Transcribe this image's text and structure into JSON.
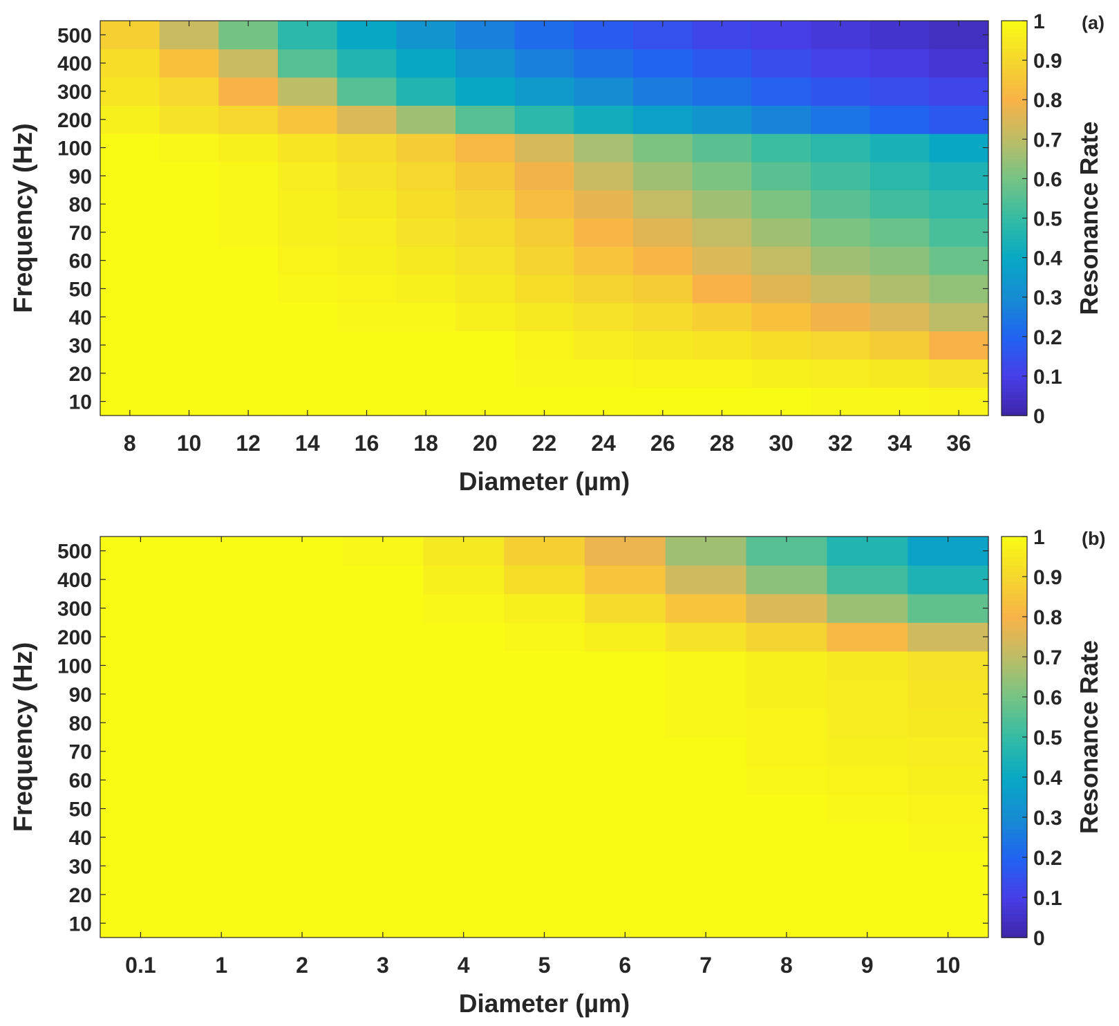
{
  "chart_data": [
    {
      "panel_label": "(a)",
      "type": "heatmap",
      "xlabel": "Diameter (µm)",
      "ylabel": "Frequency (Hz)",
      "x_categories": [
        "8",
        "10",
        "12",
        "14",
        "16",
        "18",
        "20",
        "22",
        "24",
        "26",
        "28",
        "30",
        "32",
        "34",
        "36"
      ],
      "y_categories": [
        "10",
        "20",
        "30",
        "40",
        "50",
        "60",
        "70",
        "80",
        "90",
        "100",
        "200",
        "300",
        "400",
        "500"
      ],
      "values": [
        [
          1.0,
          1.0,
          1.0,
          1.0,
          1.0,
          1.0,
          1.0,
          1.0,
          1.0,
          1.0,
          1.0,
          1.0,
          0.99,
          0.99,
          0.98
        ],
        [
          1.0,
          1.0,
          1.0,
          1.0,
          1.0,
          1.0,
          1.0,
          0.99,
          0.99,
          0.98,
          0.98,
          0.97,
          0.96,
          0.95,
          0.93
        ],
        [
          1.0,
          1.0,
          1.0,
          1.0,
          1.0,
          1.0,
          1.0,
          0.98,
          0.96,
          0.95,
          0.94,
          0.92,
          0.9,
          0.87,
          0.8
        ],
        [
          1.0,
          1.0,
          1.0,
          1.0,
          0.99,
          0.99,
          0.97,
          0.95,
          0.93,
          0.91,
          0.88,
          0.84,
          0.79,
          0.75,
          0.7
        ],
        [
          1.0,
          1.0,
          1.0,
          0.99,
          0.98,
          0.97,
          0.95,
          0.92,
          0.89,
          0.87,
          0.8,
          0.76,
          0.72,
          0.68,
          0.64
        ],
        [
          1.0,
          1.0,
          1.0,
          0.98,
          0.97,
          0.95,
          0.93,
          0.89,
          0.85,
          0.81,
          0.75,
          0.71,
          0.66,
          0.63,
          0.58
        ],
        [
          1.0,
          1.0,
          0.99,
          0.97,
          0.96,
          0.93,
          0.91,
          0.87,
          0.81,
          0.76,
          0.71,
          0.66,
          0.61,
          0.58,
          0.53
        ],
        [
          1.0,
          1.0,
          0.99,
          0.97,
          0.95,
          0.92,
          0.89,
          0.83,
          0.77,
          0.71,
          0.66,
          0.61,
          0.56,
          0.52,
          0.49
        ],
        [
          1.0,
          1.0,
          0.99,
          0.96,
          0.93,
          0.9,
          0.86,
          0.79,
          0.72,
          0.66,
          0.61,
          0.56,
          0.52,
          0.48,
          0.45
        ],
        [
          1.0,
          0.99,
          0.97,
          0.94,
          0.91,
          0.87,
          0.82,
          0.74,
          0.67,
          0.61,
          0.56,
          0.51,
          0.48,
          0.44,
          0.4
        ],
        [
          0.97,
          0.93,
          0.9,
          0.85,
          0.75,
          0.66,
          0.55,
          0.48,
          0.42,
          0.37,
          0.33,
          0.28,
          0.24,
          0.2,
          0.17
        ],
        [
          0.94,
          0.9,
          0.8,
          0.7,
          0.55,
          0.46,
          0.4,
          0.35,
          0.3,
          0.26,
          0.23,
          0.19,
          0.16,
          0.14,
          0.12
        ],
        [
          0.92,
          0.84,
          0.72,
          0.55,
          0.46,
          0.4,
          0.33,
          0.27,
          0.23,
          0.2,
          0.17,
          0.14,
          0.11,
          0.09,
          0.07
        ],
        [
          0.88,
          0.72,
          0.6,
          0.48,
          0.4,
          0.33,
          0.27,
          0.22,
          0.18,
          0.15,
          0.12,
          0.1,
          0.08,
          0.06,
          0.04
        ]
      ],
      "colorbar": {
        "label": "Resonance Rate",
        "range": [
          0,
          1
        ],
        "ticks": [
          "0",
          "0.1",
          "0.2",
          "0.3",
          "0.4",
          "0.5",
          "0.6",
          "0.7",
          "0.8",
          "0.9",
          "1"
        ],
        "colormap": "parula"
      }
    },
    {
      "panel_label": "(b)",
      "type": "heatmap",
      "xlabel": "Diameter (µm)",
      "ylabel": "Frequency (Hz)",
      "x_categories": [
        "0.1",
        "1",
        "2",
        "3",
        "4",
        "5",
        "6",
        "7",
        "8",
        "9",
        "10"
      ],
      "y_categories": [
        "10",
        "20",
        "30",
        "40",
        "50",
        "60",
        "70",
        "80",
        "90",
        "100",
        "200",
        "300",
        "400",
        "500"
      ],
      "values": [
        [
          1.0,
          1.0,
          1.0,
          1.0,
          1.0,
          1.0,
          1.0,
          1.0,
          1.0,
          1.0,
          1.0
        ],
        [
          1.0,
          1.0,
          1.0,
          1.0,
          1.0,
          1.0,
          1.0,
          1.0,
          1.0,
          1.0,
          1.0
        ],
        [
          1.0,
          1.0,
          1.0,
          1.0,
          1.0,
          1.0,
          1.0,
          1.0,
          1.0,
          1.0,
          1.0
        ],
        [
          1.0,
          1.0,
          1.0,
          1.0,
          1.0,
          1.0,
          1.0,
          1.0,
          1.0,
          1.0,
          0.99
        ],
        [
          1.0,
          1.0,
          1.0,
          1.0,
          1.0,
          1.0,
          1.0,
          1.0,
          1.0,
          0.99,
          0.98
        ],
        [
          1.0,
          1.0,
          1.0,
          1.0,
          1.0,
          1.0,
          1.0,
          1.0,
          0.99,
          0.98,
          0.97
        ],
        [
          1.0,
          1.0,
          1.0,
          1.0,
          1.0,
          1.0,
          1.0,
          1.0,
          0.98,
          0.97,
          0.96
        ],
        [
          1.0,
          1.0,
          1.0,
          1.0,
          1.0,
          1.0,
          1.0,
          0.99,
          0.98,
          0.96,
          0.95
        ],
        [
          1.0,
          1.0,
          1.0,
          1.0,
          1.0,
          1.0,
          1.0,
          0.99,
          0.97,
          0.96,
          0.94
        ],
        [
          1.0,
          1.0,
          1.0,
          1.0,
          1.0,
          1.0,
          1.0,
          0.99,
          0.97,
          0.95,
          0.93
        ],
        [
          1.0,
          1.0,
          1.0,
          1.0,
          1.0,
          0.99,
          0.97,
          0.93,
          0.89,
          0.82,
          0.73
        ],
        [
          1.0,
          1.0,
          1.0,
          1.0,
          0.99,
          0.97,
          0.91,
          0.85,
          0.75,
          0.65,
          0.57
        ],
        [
          1.0,
          1.0,
          1.0,
          1.0,
          0.97,
          0.92,
          0.85,
          0.73,
          0.63,
          0.52,
          0.45
        ],
        [
          1.0,
          1.0,
          1.0,
          0.99,
          0.95,
          0.88,
          0.78,
          0.66,
          0.55,
          0.46,
          0.38
        ]
      ],
      "colorbar": {
        "label": "Resonance Rate",
        "range": [
          0,
          1
        ],
        "ticks": [
          "0",
          "0.1",
          "0.2",
          "0.3",
          "0.4",
          "0.5",
          "0.6",
          "0.7",
          "0.8",
          "0.9",
          "1"
        ],
        "colormap": "parula"
      }
    }
  ]
}
